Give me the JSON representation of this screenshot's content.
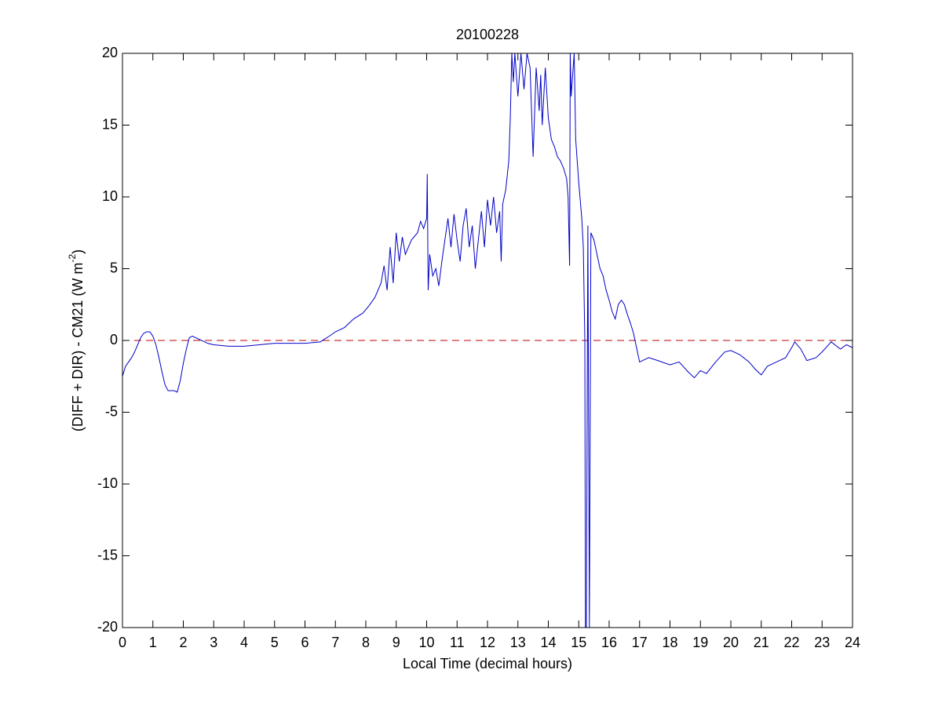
{
  "chart_data": {
    "type": "line",
    "title": "20100228",
    "xlabel": "Local Time (decimal hours)",
    "ylabel": {
      "text": "(DIFF + DIR) - CM21 (W m",
      "superscript": "-2",
      "suffix": ")"
    },
    "xlim": [
      0,
      24
    ],
    "ylim": [
      -20,
      20
    ],
    "xticks": [
      0,
      1,
      2,
      3,
      4,
      5,
      6,
      7,
      8,
      9,
      10,
      11,
      12,
      13,
      14,
      15,
      16,
      17,
      18,
      19,
      20,
      21,
      22,
      23,
      24
    ],
    "yticks": [
      -20,
      -15,
      -10,
      -5,
      0,
      5,
      10,
      15,
      20
    ],
    "hline": {
      "value": 0,
      "color": "#c00000",
      "dashed": true
    },
    "series": [
      {
        "color": "#0000c8",
        "x": [
          0,
          0.1,
          0.2,
          0.3,
          0.4,
          0.5,
          0.6,
          0.7,
          0.8,
          0.9,
          1.0,
          1.1,
          1.2,
          1.3,
          1.4,
          1.5,
          1.6,
          1.7,
          1.8,
          1.9,
          2.0,
          2.1,
          2.2,
          2.3,
          2.5,
          2.8,
          3.0,
          3.5,
          4.0,
          4.5,
          5,
          5.5,
          6,
          6.5,
          6.8,
          7,
          7.3,
          7.6,
          7.9,
          8.1,
          8.3,
          8.5,
          8.6,
          8.7,
          8.8,
          8.9,
          9.0,
          9.1,
          9.2,
          9.3,
          9.5,
          9.7,
          9.8,
          9.9,
          10.0,
          10.02,
          10.05,
          10.1,
          10.2,
          10.3,
          10.4,
          10.5,
          10.6,
          10.7,
          10.8,
          10.9,
          11.0,
          11.1,
          11.2,
          11.3,
          11.4,
          11.5,
          11.6,
          11.7,
          11.8,
          11.9,
          12.0,
          12.1,
          12.2,
          12.3,
          12.4,
          12.45,
          12.5,
          12.6,
          12.7,
          12.75,
          12.8,
          12.85,
          12.9,
          13.0,
          13.1,
          13.2,
          13.3,
          13.4,
          13.5,
          13.6,
          13.7,
          13.75,
          13.8,
          13.9,
          14.0,
          14.1,
          14.2,
          14.3,
          14.4,
          14.5,
          14.6,
          14.65,
          14.7,
          14.72,
          14.75,
          14.85,
          14.9,
          15.0,
          15.1,
          15.15,
          15.2,
          15.22,
          15.25,
          15.3,
          15.35,
          15.4,
          15.5,
          15.6,
          15.7,
          15.8,
          15.9,
          16.0,
          16.1,
          16.2,
          16.3,
          16.4,
          16.5,
          16.6,
          16.7,
          16.8,
          16.9,
          17.0,
          17.3,
          17.6,
          18,
          18.3,
          18.6,
          18.8,
          19,
          19.2,
          19.5,
          19.8,
          20,
          20.3,
          20.6,
          20.8,
          21,
          21.2,
          21.5,
          21.8,
          22,
          22.1,
          22.3,
          22.5,
          22.8,
          23,
          23.3,
          23.6,
          23.8,
          24
        ],
        "values": [
          -2.5,
          -1.8,
          -1.5,
          -1.2,
          -0.8,
          -0.3,
          0.2,
          0.5,
          0.6,
          0.6,
          0.3,
          -0.3,
          -1.2,
          -2.2,
          -3.1,
          -3.5,
          -3.5,
          -3.5,
          -3.6,
          -2.8,
          -1.6,
          -0.6,
          0.2,
          0.3,
          0.1,
          -0.2,
          -0.3,
          -0.4,
          -0.4,
          -0.3,
          -0.2,
          -0.2,
          -0.2,
          -0.1,
          0.3,
          0.6,
          0.9,
          1.5,
          1.9,
          2.4,
          3.0,
          4.0,
          5.2,
          3.5,
          6.5,
          4.0,
          7.5,
          5.5,
          7.2,
          6.0,
          7.0,
          7.5,
          8.3,
          7.8,
          8.5,
          11.6,
          3.5,
          6.0,
          4.5,
          5.0,
          3.8,
          5.5,
          7.0,
          8.5,
          6.5,
          8.8,
          7.0,
          5.5,
          8.0,
          9.2,
          6.5,
          8.0,
          5.0,
          7.0,
          9.0,
          6.5,
          9.8,
          8.0,
          10.0,
          7.5,
          9.0,
          5.5,
          9.5,
          10.5,
          12.5,
          15.5,
          20,
          18,
          20,
          17,
          20,
          17.5,
          20,
          19,
          12.8,
          19,
          16,
          18.5,
          15,
          19,
          15.5,
          14,
          13.5,
          12.8,
          12.5,
          12,
          11.3,
          10,
          5.2,
          20,
          17,
          20,
          14,
          11,
          8.5,
          6.5,
          0,
          -20,
          -20,
          8,
          -20,
          7.5,
          7.0,
          6.0,
          5.0,
          4.5,
          3.5,
          2.8,
          2.0,
          1.5,
          2.5,
          2.8,
          2.5,
          1.8,
          1.2,
          0.5,
          -0.5,
          -1.5,
          -1.2,
          -1.4,
          -1.7,
          -1.5,
          -2.2,
          -2.6,
          -2.1,
          -2.3,
          -1.5,
          -0.8,
          -0.7,
          -1.0,
          -1.5,
          -2.0,
          -2.4,
          -1.8,
          -1.5,
          -1.2,
          -0.5,
          -0.1,
          -0.6,
          -1.4,
          -1.2,
          -0.8,
          -0.1,
          -0.6,
          -0.3,
          -0.5
        ]
      }
    ]
  }
}
